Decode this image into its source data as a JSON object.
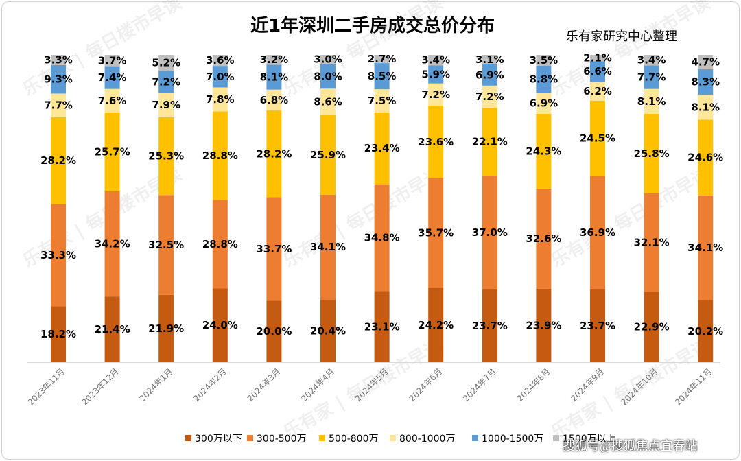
{
  "chart_data": {
    "type": "bar",
    "stacked": true,
    "normalized": true,
    "title": "近1年深圳二手房成交总价分布",
    "source": "乐有家研究中心整理",
    "watermark_text": "每日楼市早读",
    "watermark_logo": "乐有家",
    "corner_watermark": "搜狐号@搜狐焦点宜春站",
    "categories": [
      "2023年11月",
      "2023年12月",
      "2024年1月",
      "2024年2月",
      "2024年3月",
      "2024年4月",
      "2024年5月",
      "2024年6月",
      "2024年7月",
      "2024年8月",
      "2024年9月",
      "2024年10月",
      "2024年11月"
    ],
    "series": [
      {
        "name": "300万以下",
        "color": "#c55a11",
        "values": [
          18.2,
          21.4,
          21.9,
          24.0,
          20.0,
          20.4,
          23.1,
          24.2,
          23.7,
          23.9,
          23.7,
          22.9,
          20.2
        ]
      },
      {
        "name": "300-500万",
        "color": "#ed7d31",
        "values": [
          33.3,
          34.2,
          32.5,
          28.8,
          33.7,
          34.1,
          34.8,
          35.7,
          37.0,
          32.6,
          36.9,
          32.1,
          34.1
        ]
      },
      {
        "name": "500-800万",
        "color": "#ffc000",
        "values": [
          28.2,
          25.7,
          25.3,
          28.8,
          28.2,
          25.9,
          23.4,
          23.6,
          22.1,
          24.3,
          24.5,
          25.8,
          24.6
        ]
      },
      {
        "name": "800-1000万",
        "color": "#ffe699",
        "values": [
          7.7,
          7.6,
          7.9,
          7.8,
          6.8,
          8.6,
          7.5,
          7.2,
          7.2,
          6.9,
          6.2,
          8.1,
          8.1
        ]
      },
      {
        "name": "1000-1500万",
        "color": "#5b9bd5",
        "values": [
          9.3,
          7.4,
          7.2,
          7.0,
          8.1,
          8.0,
          8.5,
          5.9,
          6.9,
          8.8,
          6.6,
          7.7,
          8.3
        ]
      },
      {
        "name": "1500万以上",
        "color": "#bfbfbf",
        "values": [
          3.3,
          3.7,
          5.2,
          3.6,
          3.2,
          3.0,
          2.7,
          3.4,
          3.1,
          3.5,
          2.1,
          3.4,
          4.7
        ]
      }
    ],
    "legend": [
      "300万以下",
      "300-500万",
      "500-800万",
      "800-1000万",
      "1000-1500万",
      "1500万以上"
    ],
    "legend_position": "bottom",
    "ylim": [
      0,
      100
    ],
    "grid": false
  }
}
